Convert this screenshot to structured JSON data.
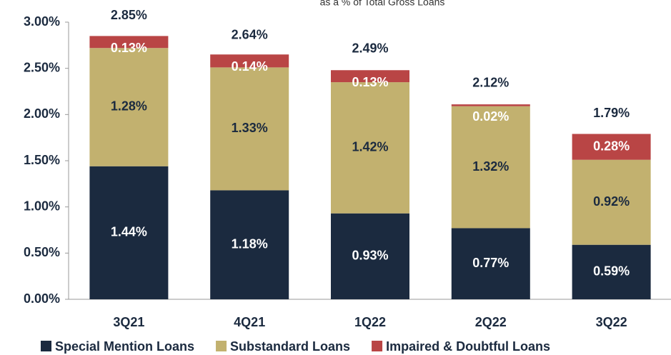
{
  "chart_data": {
    "type": "stacked_bar",
    "subtitle": "as a % of Total Gross Loans",
    "categories": [
      "3Q21",
      "4Q21",
      "1Q22",
      "2Q22",
      "3Q22"
    ],
    "series": [
      {
        "name": "Special Mention Loans",
        "color": "#1b2a3f",
        "values": [
          1.44,
          1.18,
          0.93,
          0.77,
          0.59
        ],
        "value_labels": [
          "1.44%",
          "1.18%",
          "0.93%",
          "0.77%",
          "0.59%"
        ]
      },
      {
        "name": "Substandard Loans",
        "color": "#c2b16f",
        "values": [
          1.28,
          1.33,
          1.42,
          1.32,
          0.92
        ],
        "value_labels": [
          "1.28%",
          "1.33%",
          "1.42%",
          "1.32%",
          "0.92%"
        ]
      },
      {
        "name": "Impaired & Doubtful Loans",
        "color": "#b94545",
        "values": [
          0.13,
          0.14,
          0.13,
          0.02,
          0.28
        ],
        "value_labels": [
          "0.13%",
          "0.14%",
          "0.13%",
          "0.02%",
          "0.28%"
        ]
      }
    ],
    "totals": [
      2.85,
      2.64,
      2.49,
      2.12,
      1.79
    ],
    "total_labels": [
      "2.85%",
      "2.64%",
      "2.49%",
      "2.12%",
      "1.79%"
    ],
    "ylim": [
      0,
      3
    ],
    "yticks": [
      {
        "value": 0,
        "label": "0.00%"
      },
      {
        "value": 0.5,
        "label": "0.50%"
      },
      {
        "value": 1,
        "label": "1.00%"
      },
      {
        "value": 1.5,
        "label": "1.50%"
      },
      {
        "value": 2,
        "label": "2.00%"
      },
      {
        "value": 2.5,
        "label": "2.50%"
      },
      {
        "value": 3,
        "label": "3.00%"
      }
    ],
    "legend": "bottom"
  }
}
